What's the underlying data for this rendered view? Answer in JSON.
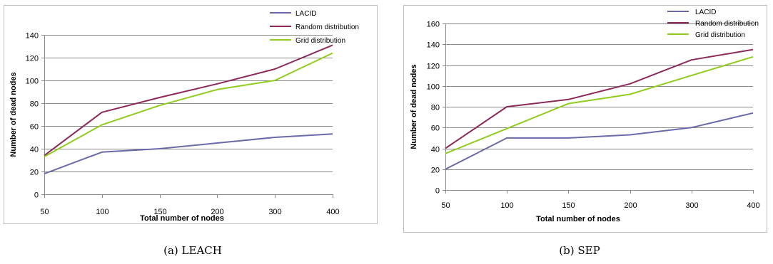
{
  "chart_data": [
    {
      "type": "line",
      "caption": "(a) LEACH",
      "xlabel": "Total number of nodes",
      "ylabel": "Number of dead nodes",
      "categories": [
        "50",
        "100",
        "150",
        "200",
        "300",
        "400"
      ],
      "y_ticks": [
        0,
        20,
        40,
        60,
        80,
        100,
        120,
        140
      ],
      "ylim": [
        0,
        140
      ],
      "grid": true,
      "legend": "top-right",
      "series": [
        {
          "name": "LACID",
          "color": "#6a6aa8",
          "values": [
            18,
            37,
            40,
            45,
            50,
            53
          ]
        },
        {
          "name": "Random distribution",
          "color": "#8b2a5a",
          "values": [
            34,
            72,
            85,
            97,
            110,
            131
          ]
        },
        {
          "name": "Grid distribution",
          "color": "#8fcc1c",
          "values": [
            33,
            61,
            78,
            92,
            100,
            124
          ]
        }
      ]
    },
    {
      "type": "line",
      "caption": "(b) SEP",
      "xlabel": "Total number of nodes",
      "ylabel": "Number of dead nodes",
      "categories": [
        "50",
        "100",
        "150",
        "200",
        "300",
        "400"
      ],
      "y_ticks": [
        0,
        20,
        40,
        60,
        80,
        100,
        120,
        140,
        160
      ],
      "ylim": [
        0,
        160
      ],
      "grid": true,
      "legend": "top-right",
      "series": [
        {
          "name": "LACID",
          "color": "#6a6aa8",
          "values": [
            20,
            50,
            50,
            53,
            60,
            74
          ]
        },
        {
          "name": "Random distribution",
          "color": "#8b2a5a",
          "values": [
            40,
            80,
            87,
            102,
            125,
            135
          ]
        },
        {
          "name": "Grid distribution",
          "color": "#8fcc1c",
          "values": [
            35,
            59,
            83,
            92,
            110,
            128
          ]
        }
      ]
    }
  ]
}
